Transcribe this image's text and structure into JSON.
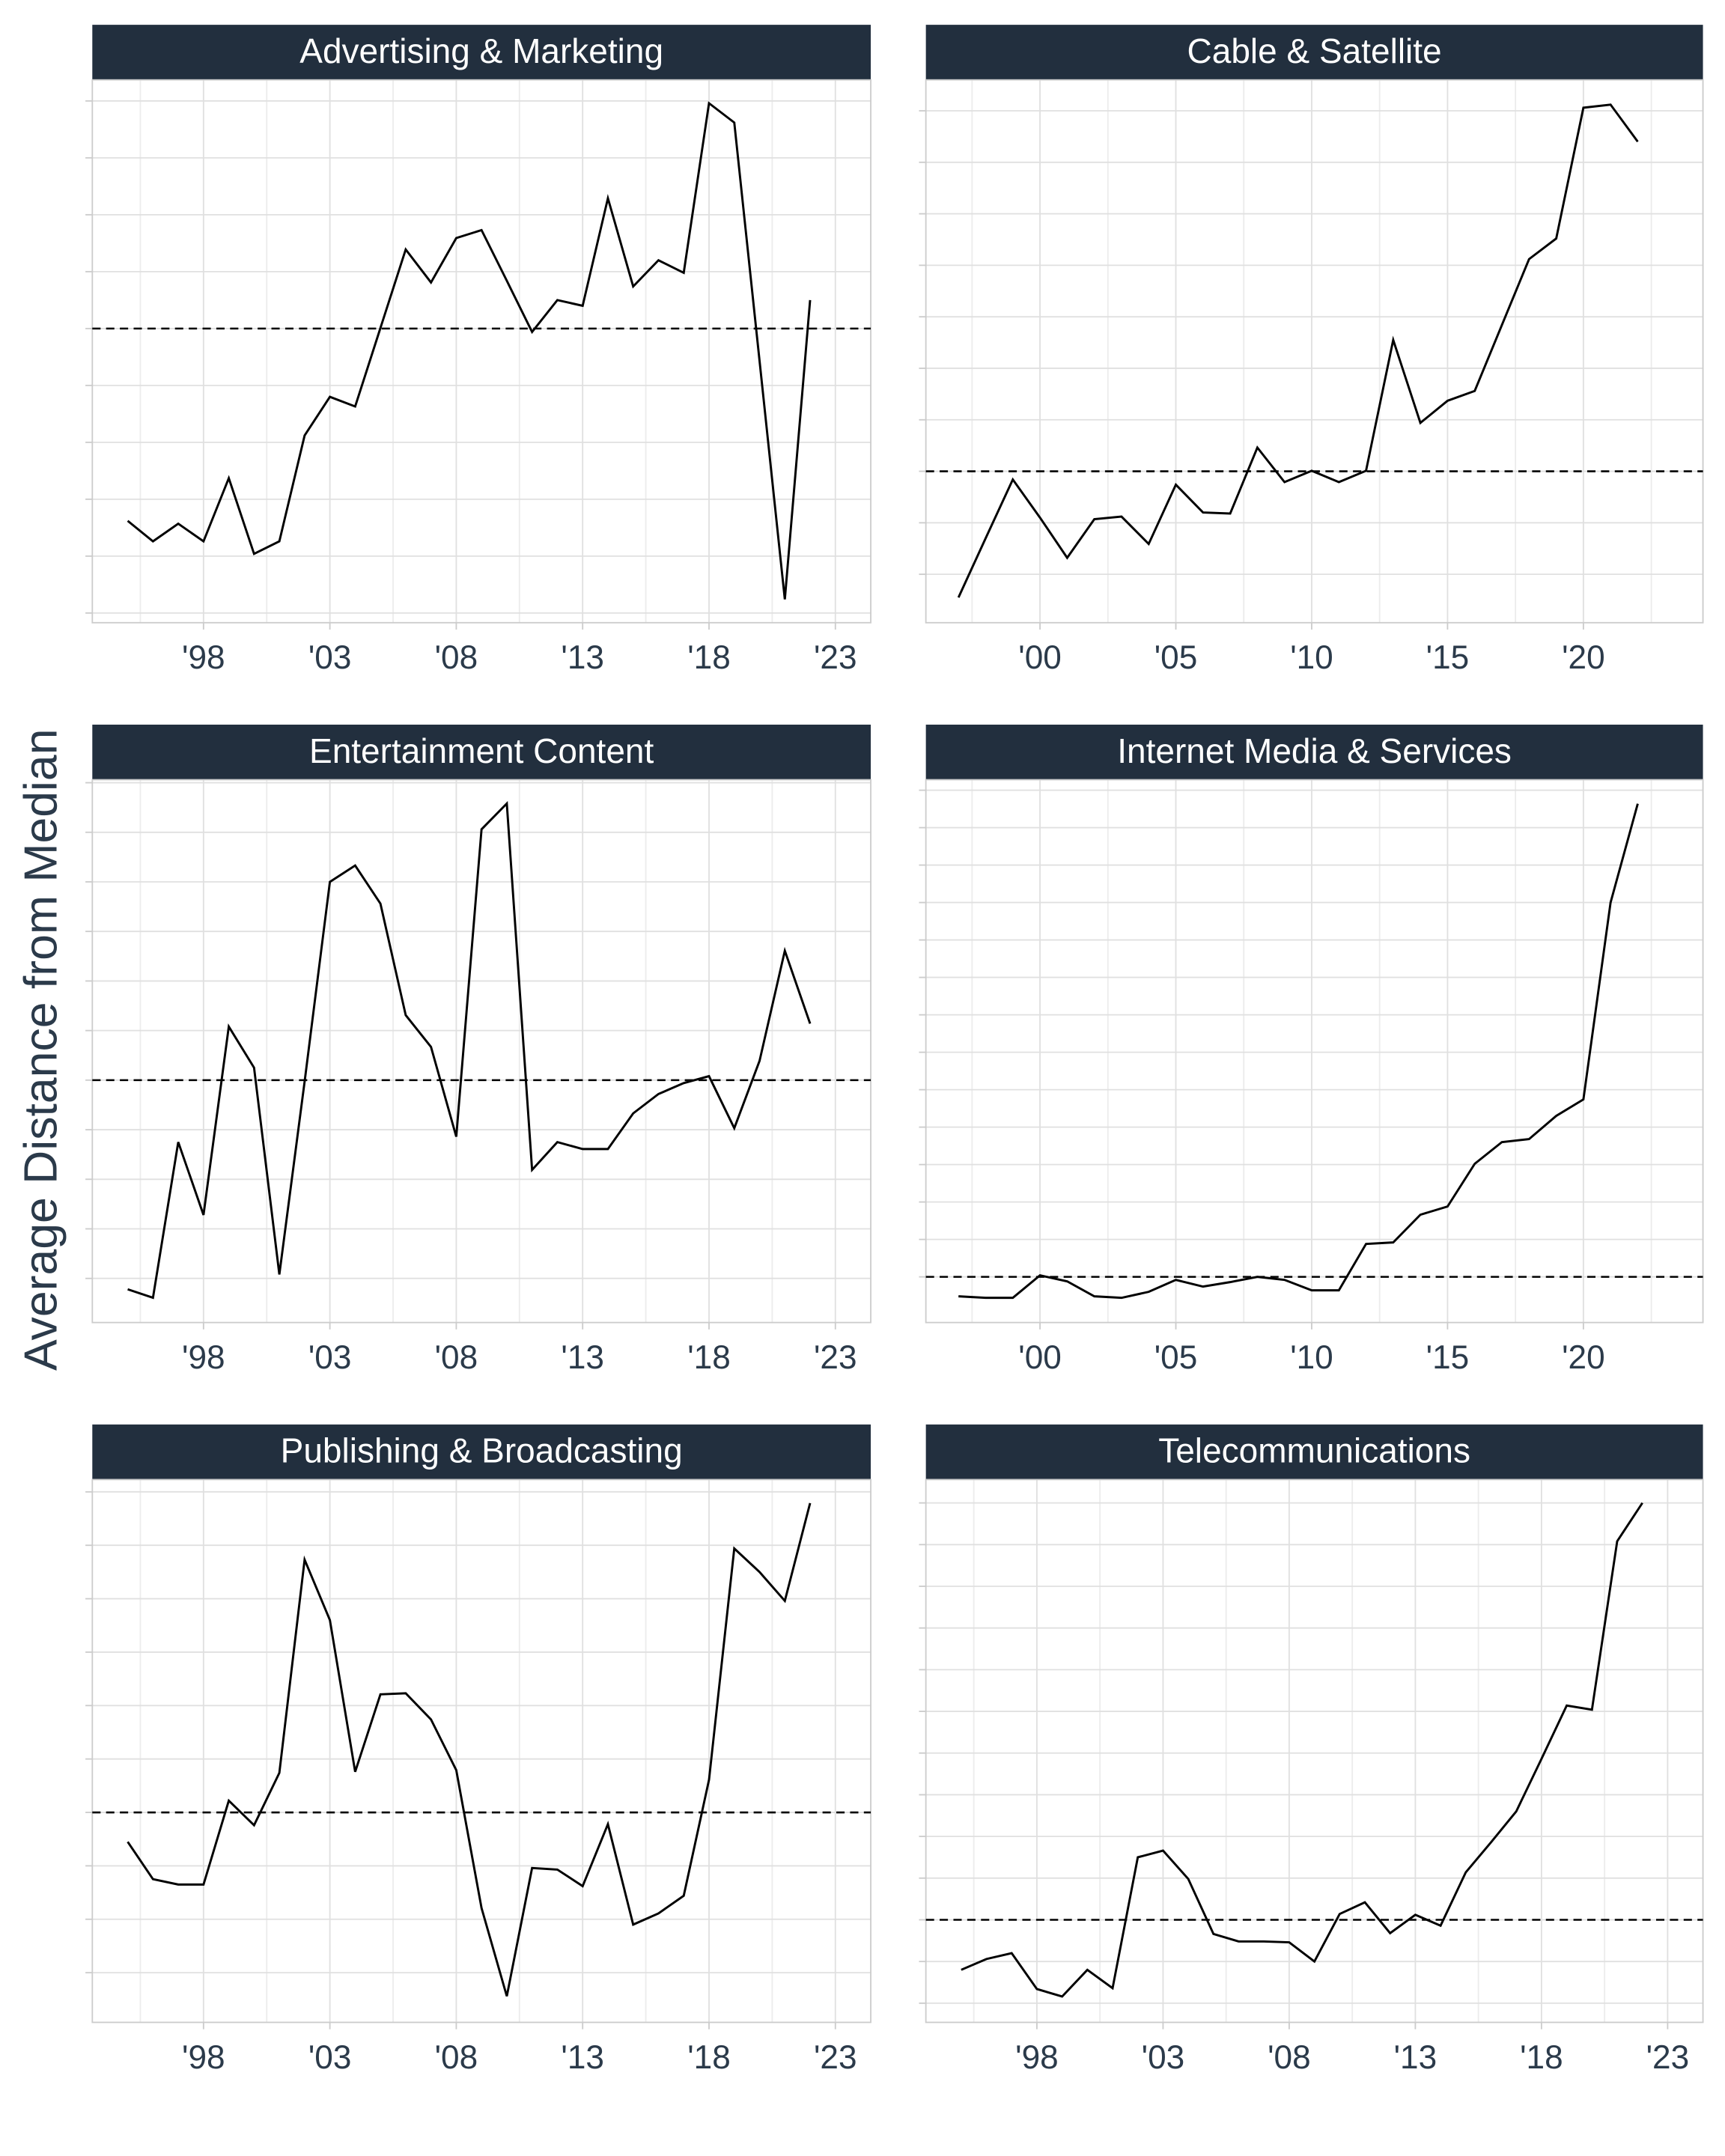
{
  "y_label": "Average Distance from Median",
  "chart_data": [
    {
      "type": "line",
      "title": "Advertising & Marketing",
      "color": "#000000",
      "grid": true,
      "x": [
        1995,
        1996,
        1997,
        1998,
        1999,
        2000,
        2001,
        2002,
        2003,
        2004,
        2005,
        2006,
        2007,
        2008,
        2009,
        2010,
        2011,
        2012,
        2013,
        2014,
        2015,
        2016,
        2017,
        2018,
        2019,
        2020,
        2021,
        2022
      ],
      "values": [
        1.62,
        1.26,
        1.57,
        1.26,
        2.37,
        1.04,
        1.26,
        3.12,
        3.8,
        3.63,
        5.01,
        6.39,
        5.81,
        6.59,
        6.73,
        5.84,
        4.94,
        5.5,
        5.4,
        7.29,
        5.74,
        6.2,
        5.98,
        8.96,
        8.62,
        4.43,
        0.24,
        5.5
      ],
      "median_line": 5.0,
      "xlim": [
        1993.6,
        2024.4
      ],
      "ylim": [
        -0.17,
        9.37
      ],
      "xticks": [
        {
          "value": 1998,
          "label": "'98"
        },
        {
          "value": 2003,
          "label": "'03"
        },
        {
          "value": 2008,
          "label": "'08"
        },
        {
          "value": 2013,
          "label": "'13"
        },
        {
          "value": 2018,
          "label": "'18"
        },
        {
          "value": 2023,
          "label": "'23"
        }
      ],
      "yticks": [
        0,
        1,
        2,
        3,
        4,
        5,
        6,
        7,
        8,
        9
      ]
    },
    {
      "type": "line",
      "title": "Cable & Satellite",
      "color": "#000000",
      "grid": true,
      "x": [
        1997,
        1998,
        1999,
        2000,
        2001,
        2002,
        2003,
        2004,
        2005,
        2006,
        2007,
        2008,
        2009,
        2010,
        2011,
        2012,
        2013,
        2014,
        2015,
        2016,
        2017,
        2018,
        2019,
        2020,
        2021,
        2022
      ],
      "values": [
        -0.45,
        0.7,
        1.84,
        1.1,
        0.32,
        1.07,
        1.12,
        0.59,
        1.74,
        1.2,
        1.18,
        2.46,
        1.79,
        2.01,
        1.79,
        2.01,
        4.55,
        2.94,
        3.37,
        3.56,
        4.84,
        6.12,
        6.52,
        9.06,
        9.12,
        8.4
      ],
      "median_line": 2.0,
      "xlim": [
        1995.8,
        2024.4
      ],
      "ylim": [
        -0.94,
        9.6
      ],
      "xticks": [
        {
          "value": 2000,
          "label": "'00"
        },
        {
          "value": 2005,
          "label": "'05"
        },
        {
          "value": 2010,
          "label": "'10"
        },
        {
          "value": 2015,
          "label": "'15"
        },
        {
          "value": 2020,
          "label": "'20"
        }
      ],
      "yticks": [
        0,
        1,
        2,
        3,
        4,
        5,
        6,
        7,
        8,
        9
      ]
    },
    {
      "type": "line",
      "title": "Entertainment Content",
      "color": "#000000",
      "grid": true,
      "x": [
        1995,
        1996,
        1997,
        1998,
        1999,
        2000,
        2001,
        2002,
        2003,
        2004,
        2005,
        2006,
        2007,
        2008,
        2009,
        2010,
        2011,
        2012,
        2013,
        2014,
        2015,
        2016,
        2017,
        2018,
        2019,
        2020,
        2021,
        2022
      ],
      "values": [
        -0.22,
        -0.39,
        2.75,
        1.28,
        5.08,
        4.25,
        0.08,
        3.97,
        8.0,
        8.33,
        7.56,
        5.31,
        4.67,
        2.86,
        9.06,
        9.58,
        2.19,
        2.75,
        2.61,
        2.61,
        3.33,
        3.72,
        3.94,
        4.08,
        3.03,
        4.39,
        6.61,
        5.14
      ],
      "median_line": 4.0,
      "xlim": [
        1993.6,
        2024.4
      ],
      "ylim": [
        -0.89,
        10.06
      ],
      "xticks": [
        {
          "value": 1998,
          "label": "'98"
        },
        {
          "value": 2003,
          "label": "'03"
        },
        {
          "value": 2008,
          "label": "'08"
        },
        {
          "value": 2013,
          "label": "'13"
        },
        {
          "value": 2018,
          "label": "'18"
        },
        {
          "value": 2023,
          "label": "'23"
        }
      ],
      "yticks": [
        0,
        1,
        2,
        3,
        4,
        5,
        6,
        7,
        8,
        9,
        10
      ]
    },
    {
      "type": "line",
      "title": "Internet Media & Services",
      "color": "#000000",
      "grid": true,
      "x": [
        1997,
        1998,
        1999,
        2000,
        2001,
        2002,
        2003,
        2004,
        2005,
        2006,
        2007,
        2008,
        2009,
        2010,
        2011,
        2012,
        2013,
        2014,
        2015,
        2016,
        2017,
        2018,
        2019,
        2020,
        2021,
        2022
      ],
      "values": [
        -0.26,
        -0.28,
        -0.28,
        0.02,
        -0.06,
        -0.26,
        -0.28,
        -0.2,
        -0.04,
        -0.13,
        -0.07,
        0,
        -0.04,
        -0.18,
        -0.18,
        0.44,
        0.46,
        0.83,
        0.94,
        1.51,
        1.8,
        1.84,
        2.15,
        2.37,
        5.0,
        6.32
      ],
      "median_line": 0,
      "xlim": [
        1995.8,
        2024.4
      ],
      "ylim": [
        -0.61,
        6.64
      ],
      "xticks": [
        {
          "value": 2000,
          "label": "'00"
        },
        {
          "value": 2005,
          "label": "'05"
        },
        {
          "value": 2010,
          "label": "'10"
        },
        {
          "value": 2015,
          "label": "'15"
        },
        {
          "value": 2020,
          "label": "'20"
        }
      ],
      "yticks": [
        0,
        0.5,
        1,
        1.5,
        2,
        2.5,
        3,
        3.5,
        4,
        4.5,
        5,
        5.5,
        6,
        6.5
      ]
    },
    {
      "type": "line",
      "title": "Publishing & Broadcasting",
      "color": "#000000",
      "grid": true,
      "x": [
        1995,
        1996,
        1997,
        1998,
        1999,
        2000,
        2001,
        2002,
        2003,
        2004,
        2005,
        2006,
        2007,
        2008,
        2009,
        2010,
        2011,
        2012,
        2013,
        2014,
        2015,
        2016,
        2017,
        2018,
        2019,
        2020,
        2021,
        2022
      ],
      "values": [
        2.45,
        1.75,
        1.65,
        1.65,
        3.22,
        2.76,
        3.74,
        7.73,
        6.6,
        3.76,
        5.21,
        5.23,
        4.74,
        3.79,
        1.21,
        -0.44,
        1.96,
        1.93,
        1.62,
        2.78,
        0.9,
        1.11,
        1.44,
        3.61,
        7.94,
        7.5,
        6.96,
        8.79
      ],
      "median_line": 3.0,
      "xlim": [
        1993.6,
        2024.4
      ],
      "ylim": [
        -0.93,
        9.23
      ],
      "xticks": [
        {
          "value": 1998,
          "label": "'98"
        },
        {
          "value": 2003,
          "label": "'03"
        },
        {
          "value": 2008,
          "label": "'08"
        },
        {
          "value": 2013,
          "label": "'13"
        },
        {
          "value": 2018,
          "label": "'18"
        },
        {
          "value": 2023,
          "label": "'23"
        }
      ],
      "yticks": [
        0,
        1,
        2,
        3,
        4,
        5,
        6,
        7,
        8,
        9
      ]
    },
    {
      "type": "line",
      "title": "Telecommunications",
      "color": "#000000",
      "grid": true,
      "x": [
        1995,
        1996,
        1997,
        1998,
        1999,
        2000,
        2001,
        2002,
        2003,
        2004,
        2005,
        2006,
        2007,
        2008,
        2009,
        2010,
        2011,
        2012,
        2013,
        2014,
        2015,
        2016,
        2017,
        2018,
        2019,
        2020,
        2021,
        2022
      ],
      "values": [
        0.4,
        0.53,
        0.6,
        0.17,
        0.08,
        0.4,
        0.18,
        1.75,
        1.83,
        1.49,
        0.83,
        0.74,
        0.74,
        0.73,
        0.5,
        1.07,
        1.21,
        0.84,
        1.06,
        0.93,
        1.57,
        1.93,
        2.3,
        2.93,
        3.57,
        3.52,
        5.54,
        6.0
      ],
      "median_line": 1.0,
      "xlim": [
        1993.6,
        2024.4
      ],
      "ylim": [
        -0.23,
        6.28
      ],
      "xticks": [
        {
          "value": 1998,
          "label": "'98"
        },
        {
          "value": 2003,
          "label": "'03"
        },
        {
          "value": 2008,
          "label": "'08"
        },
        {
          "value": 2013,
          "label": "'13"
        },
        {
          "value": 2018,
          "label": "'18"
        },
        {
          "value": 2023,
          "label": "'23"
        }
      ],
      "yticks": [
        0,
        0.5,
        1,
        1.5,
        2,
        2.5,
        3,
        3.5,
        4,
        4.5,
        5,
        5.5,
        6
      ]
    }
  ]
}
